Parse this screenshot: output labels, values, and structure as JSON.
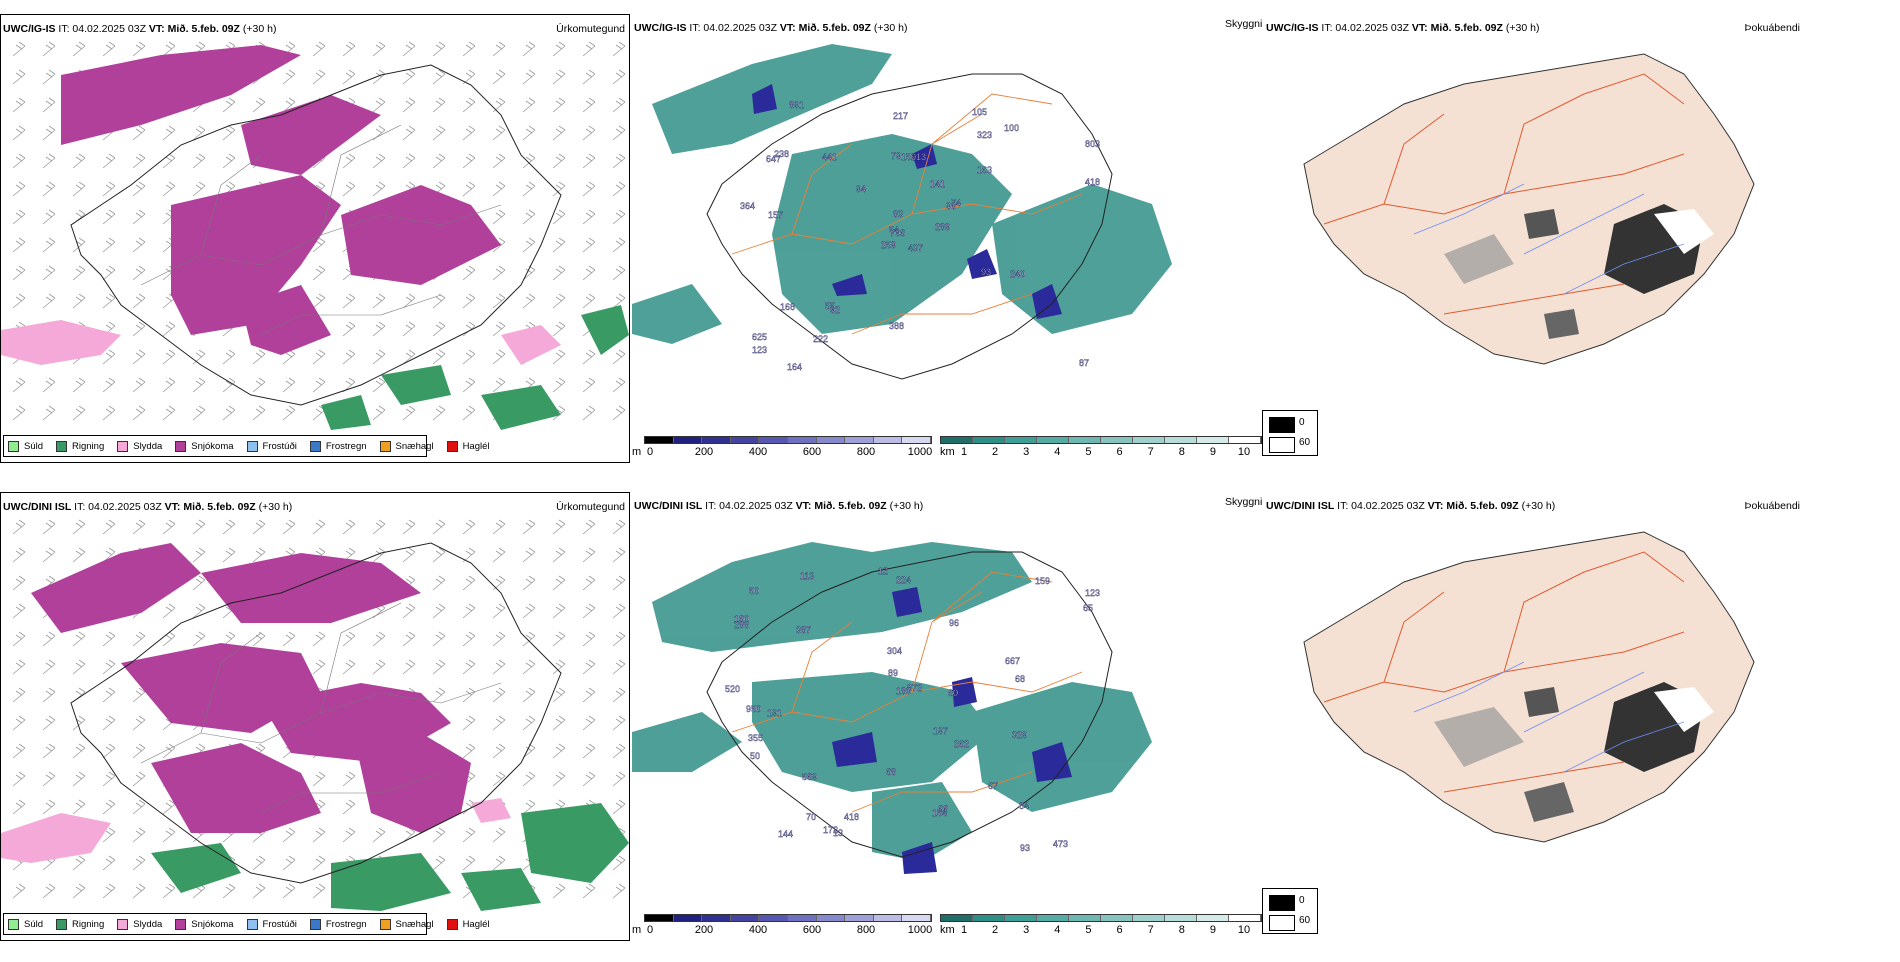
{
  "rows": [
    {
      "model": "UWC/IG-IS",
      "it": "IT: 04.02.2025 03Z",
      "vt_label": "VT:",
      "vt": "Mið. 5.feb. 09Z",
      "lead": "(+30 h)",
      "p1_title": "Úrkomutegund",
      "p2_title": "Skyggni",
      "p3_title": "Þokuábendi",
      "visibility_labels": [
        "437",
        "647",
        "706",
        "625",
        "98",
        "92",
        "105",
        "213",
        "323",
        "289",
        "891",
        "87",
        "157",
        "803",
        "259",
        "163",
        "164",
        "79",
        "141",
        "168",
        "94",
        "123",
        "222",
        "159",
        "74",
        "240",
        "238",
        "217",
        "364",
        "93",
        "418",
        "54",
        "388",
        "83",
        "441",
        "100",
        "55"
      ]
    },
    {
      "model": "UWC/DINI ISL",
      "it": "IT: 04.02.2025 03Z",
      "vt_label": "VT:",
      "vt": "Mið. 5.feb. 09Z",
      "lead": "(+30 h)",
      "p1_title": "Úrkomutegund",
      "p2_title": "Skyggni",
      "p3_title": "Þokuábendi",
      "visibility_labels": [
        "520",
        "224",
        "667",
        "123",
        "160",
        "473",
        "191",
        "96",
        "304",
        "159",
        "372",
        "329",
        "12",
        "288",
        "387",
        "569",
        "66",
        "950",
        "197",
        "68",
        "67",
        "84",
        "65",
        "89",
        "70",
        "183",
        "262",
        "113",
        "13",
        "154",
        "355",
        "93",
        "60",
        "144",
        "172",
        "50",
        "68",
        "50",
        "418"
      ]
    }
  ],
  "precip_legend": [
    {
      "label": "Súld",
      "color": "#90ee90"
    },
    {
      "label": "Rigning",
      "color": "#3a9a64"
    },
    {
      "label": "Slydda",
      "color": "#f4a9d9"
    },
    {
      "label": "Snjókoma",
      "color": "#b0409a"
    },
    {
      "label": "Frostúði",
      "color": "#90c0f0"
    },
    {
      "label": "Frostregn",
      "color": "#3a78c8"
    },
    {
      "label": "Snæhagl",
      "color": "#f0a020"
    },
    {
      "label": "Haglél",
      "color": "#e01010"
    }
  ],
  "scale_m": {
    "unit": "m",
    "ticks": [
      "0",
      "200",
      "400",
      "600",
      "800",
      "1000"
    ]
  },
  "scale_km": {
    "unit": "km",
    "ticks": [
      "1",
      "2",
      "3",
      "4",
      "5",
      "6",
      "7",
      "8",
      "9",
      "10"
    ]
  },
  "cloud_legend": {
    "low": "0",
    "high": "60"
  },
  "colors": {
    "snow": "#b0409a",
    "sleet": "#f4a9d9",
    "rain": "#3a9a64",
    "teal": "#2f8f86",
    "deepblue": "#2a2a9a",
    "land": "#f5e1d4",
    "roads": "#e8803a",
    "rivers": "#6f8ff0"
  }
}
